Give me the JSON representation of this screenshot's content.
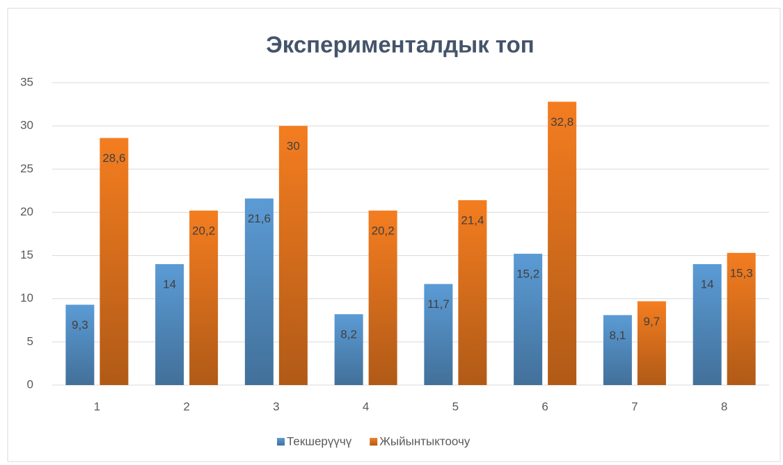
{
  "chart_data": {
    "type": "bar",
    "title": "Экспериментaлдык топ",
    "categories": [
      "1",
      "2",
      "3",
      "4",
      "5",
      "6",
      "7",
      "8"
    ],
    "series": [
      {
        "name": "Текшерүүчү",
        "color": "#5b9bd5",
        "values": [
          9.3,
          14,
          21.6,
          8.2,
          11.7,
          15.2,
          8.1,
          14
        ],
        "value_labels": [
          "9,3",
          "14",
          "21,6",
          "8,2",
          "11,7",
          "15,2",
          "8,1",
          "14"
        ]
      },
      {
        "name": "Жыйынтыктоочу",
        "color": "#f47d20",
        "values": [
          28.6,
          20.2,
          30,
          20.2,
          21.4,
          32.8,
          9.7,
          15.3
        ],
        "value_labels": [
          "28,6",
          "20,2",
          "30",
          "20,2",
          "21,4",
          "32,8",
          "9,7",
          "15,3"
        ]
      }
    ],
    "ylim": [
      0,
      35
    ],
    "yticks": [
      0,
      5,
      10,
      15,
      20,
      25,
      30,
      35
    ],
    "grid": true,
    "legend": "bottom"
  }
}
